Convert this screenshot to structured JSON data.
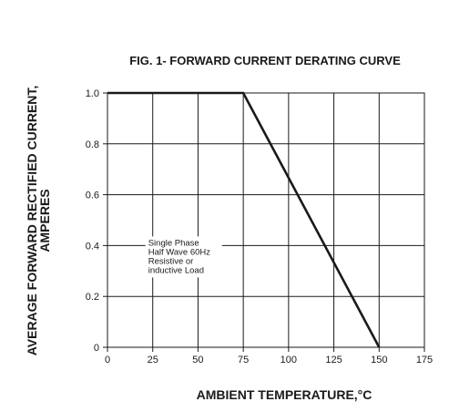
{
  "chart_data": {
    "type": "line",
    "title": "FIG. 1- FORWARD CURRENT DERATING CURVE",
    "xlabel": "AMBIENT TEMPERATURE,°C",
    "ylabel_lines": [
      "AVERAGE FORWARD RECTIFIED CURRENT,",
      "AMPERES"
    ],
    "xlim": [
      0,
      175
    ],
    "ylim": [
      0,
      1.0
    ],
    "x_ticks": [
      0,
      25,
      50,
      75,
      100,
      125,
      150,
      175
    ],
    "x_tick_labels": [
      "0",
      "25",
      "50",
      "75",
      "100",
      "125",
      "150",
      "175"
    ],
    "y_ticks": [
      0,
      0.2,
      0.4,
      0.6,
      0.8,
      1.0
    ],
    "y_tick_labels": [
      "0",
      "0.2",
      "0.4",
      "0.6",
      "0.8",
      "1.0"
    ],
    "grid": true,
    "series": [
      {
        "x": [
          0,
          75,
          150
        ],
        "y": [
          1.0,
          1.0,
          0
        ]
      }
    ],
    "annotation": {
      "lines": [
        "Single Phase",
        "Half Wave 60Hz",
        "Resistive or",
        "inductive Load"
      ],
      "x": 24,
      "y": 0.4
    },
    "colors": {
      "line": "#1a1a1a",
      "grid": "#1a1a1a"
    }
  }
}
